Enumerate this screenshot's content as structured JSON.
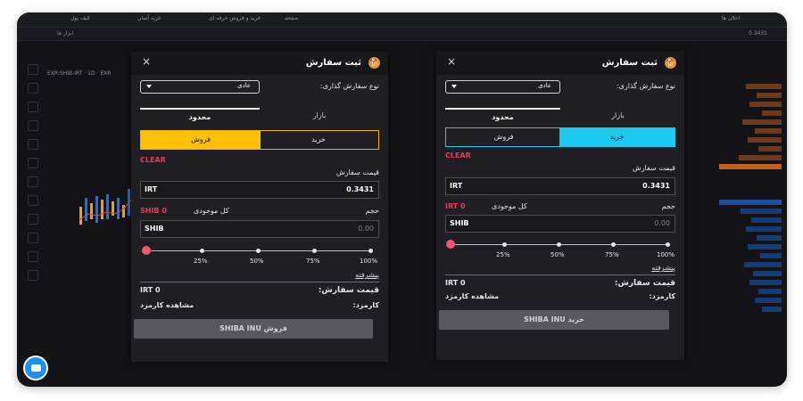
{
  "panel_left": {
    "title": "ثبت سفارش",
    "close": "×",
    "order_type_label": "نوع سفارش گذاری:",
    "order_type_value": "عادی",
    "tab_market": "بازار",
    "tab_limit": "محدود",
    "buy_label": "خرید",
    "sell_label": "فروش",
    "active_side": "sell",
    "clear_label": "CLEAR",
    "price_label": "قیمت سفارش",
    "price_currency": "IRT",
    "price_value": "0.3431",
    "volume_label": "حجم",
    "balance_label": "کل موجودی",
    "balance_value": "SHIB 0",
    "volume_currency": "SHIB",
    "volume_placeholder": "0.00",
    "slider_level": 0,
    "percents": [
      "25%",
      "50%",
      "75%",
      "100%"
    ],
    "advanced_label": "پیشرفته",
    "order_price_label": "قیمت سفارش:",
    "order_price_value": "IRT 0",
    "fee_label": "کارمزد:",
    "fee_link": "مشاهده کارمزد",
    "submit_label": "فروش SHIBA INU"
  },
  "panel_right": {
    "title": "ثبت سفارش",
    "close": "×",
    "order_type_label": "نوع سفارش گذاری:",
    "order_type_value": "عادی",
    "tab_market": "بازار",
    "tab_limit": "محدود",
    "buy_label": "خرید",
    "sell_label": "فروش",
    "active_side": "buy",
    "clear_label": "CLEAR",
    "price_label": "قیمت سفارش",
    "price_currency": "IRT",
    "price_value": "0.3431",
    "volume_label": "حجم",
    "balance_label": "کل موجودی",
    "balance_value": "IRT 0",
    "volume_currency": "SHIB",
    "volume_placeholder": "0.00",
    "slider_level": 0,
    "percents": [
      "25%",
      "50%",
      "75%",
      "100%"
    ],
    "advanced_label": "پیشرفته",
    "order_price_label": "قیمت سفارش:",
    "order_price_value": "IRT 0",
    "fee_label": "کارمزد:",
    "fee_link": "مشاهده کارمزد",
    "submit_label": "خرید SHIBA INU"
  },
  "background": {
    "nav_items": [
      "کیف پول",
      "خرید آسان",
      "خرید و فروش حرفه ای",
      "صفحه",
      "اعلان ها"
    ],
    "tools_label": "ابزار ها",
    "market_label": "بازار",
    "side_price": "0.3431",
    "depth_label": "نمودار عمق بازار",
    "pair_label": "EXR:SHIB-IRT · 1D · EXR",
    "colors": {
      "buy": "#1ec9f0",
      "sell": "#ffc107",
      "ask": "#e8762c",
      "bid": "#1e6fd9",
      "clear": "#e33b5b"
    }
  }
}
